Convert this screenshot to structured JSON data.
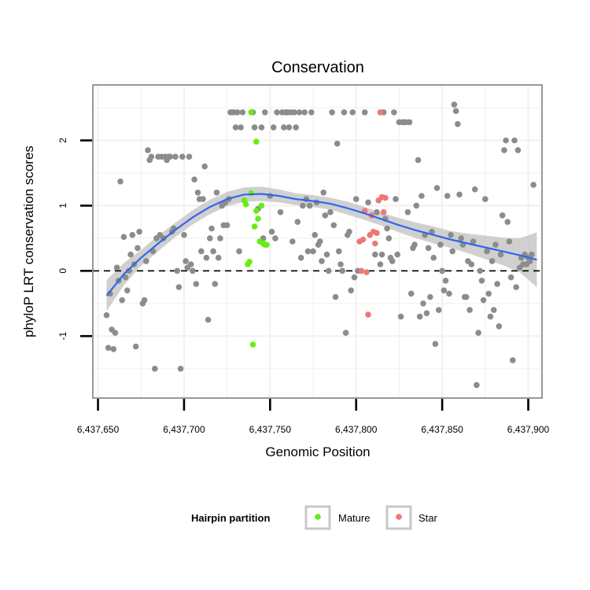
{
  "chart_data": {
    "type": "scatter",
    "title": "Conservation",
    "xlabel": "Genomic Position",
    "ylabel": "phyloP LRT conservation scores",
    "xlim": [
      6437647,
      6437908
    ],
    "ylim": [
      -1.95,
      2.85
    ],
    "x_ticks": [
      6437650,
      6437700,
      6437750,
      6437800,
      6437850,
      6437900
    ],
    "x_tick_labels": [
      "6,437,650",
      "6,437,700",
      "6,437,750",
      "6,437,800",
      "6,437,850",
      "6,437,900"
    ],
    "y_ticks": [
      -1,
      0,
      1,
      2
    ],
    "y_tick_labels": [
      "-1",
      "0",
      "1",
      "2"
    ],
    "reference_line": {
      "y": 0,
      "style": "dashed"
    },
    "grid": true,
    "legend": {
      "title": "Hairpin partition",
      "placement": "bottom",
      "entries": [
        {
          "label": "Mature",
          "color": "#66ee11"
        },
        {
          "label": "Star",
          "color": "#ee7777"
        }
      ]
    },
    "colors": {
      "other": "#8c8c8c",
      "Mature": "#66ee11",
      "Star": "#ee7777",
      "smooth": "#3366ee",
      "ribbon": "#c8c8c8"
    },
    "series": [
      {
        "group": "other",
        "points": [
          [
            6437655,
            -0.68
          ],
          [
            6437656,
            -1.18
          ],
          [
            6437657,
            -0.35
          ],
          [
            6437658,
            -0.9
          ],
          [
            6437659,
            -1.2
          ],
          [
            6437660,
            -0.95
          ],
          [
            6437661,
            0.05
          ],
          [
            6437662,
            -0.15
          ],
          [
            6437663,
            1.37
          ],
          [
            6437664,
            -0.45
          ],
          [
            6437665,
            0.52
          ],
          [
            6437666,
            -0.1
          ],
          [
            6437667,
            -0.3
          ],
          [
            6437668,
            0.0
          ],
          [
            6437669,
            0.25
          ],
          [
            6437670,
            0.55
          ],
          [
            6437671,
            0.1
          ],
          [
            6437672,
            -1.16
          ],
          [
            6437673,
            0.35
          ],
          [
            6437674,
            0.6
          ],
          [
            6437676,
            -0.5
          ],
          [
            6437677,
            -0.45
          ],
          [
            6437678,
            0.15
          ],
          [
            6437679,
            1.85
          ],
          [
            6437680,
            1.7
          ],
          [
            6437681,
            1.75
          ],
          [
            6437682,
            0.3
          ],
          [
            6437683,
            -1.5
          ],
          [
            6437684,
            0.5
          ],
          [
            6437685,
            1.75
          ],
          [
            6437686,
            0.55
          ],
          [
            6437687,
            1.75
          ],
          [
            6437688,
            0.5
          ],
          [
            6437689,
            1.75
          ],
          [
            6437690,
            1.7
          ],
          [
            6437691,
            1.75
          ],
          [
            6437692,
            1.75
          ],
          [
            6437693,
            0.6
          ],
          [
            6437694,
            0.65
          ],
          [
            6437695,
            1.75
          ],
          [
            6437696,
            0.0
          ],
          [
            6437697,
            -0.25
          ],
          [
            6437698,
            -1.5
          ],
          [
            6437699,
            1.75
          ],
          [
            6437700,
            0.55
          ],
          [
            6437701,
            0.15
          ],
          [
            6437702,
            0.05
          ],
          [
            6437703,
            1.75
          ],
          [
            6437704,
            0.1
          ],
          [
            6437705,
            0.0
          ],
          [
            6437706,
            1.4
          ],
          [
            6437707,
            -0.2
          ],
          [
            6437708,
            1.2
          ],
          [
            6437709,
            1.1
          ],
          [
            6437710,
            0.3
          ],
          [
            6437711,
            1.1
          ],
          [
            6437712,
            1.6
          ],
          [
            6437713,
            0.2
          ],
          [
            6437714,
            -0.75
          ],
          [
            6437715,
            0.5
          ],
          [
            6437716,
            0.65
          ],
          [
            6437717,
            0.3
          ],
          [
            6437718,
            -0.2
          ],
          [
            6437719,
            1.2
          ],
          [
            6437720,
            0.2
          ],
          [
            6437721,
            0.5
          ],
          [
            6437722,
            1.0
          ],
          [
            6437723,
            0.7
          ],
          [
            6437724,
            1.05
          ],
          [
            6437725,
            0.7
          ],
          [
            6437726,
            1.1
          ],
          [
            6437727,
            2.43
          ],
          [
            6437728,
            2.43
          ],
          [
            6437729,
            2.43
          ],
          [
            6437730,
            2.2
          ],
          [
            6437731,
            2.43
          ],
          [
            6437732,
            0.3
          ],
          [
            6437733,
            2.2
          ],
          [
            6437734,
            2.43
          ],
          [
            6437740,
            2.43
          ],
          [
            6437741,
            2.2
          ],
          [
            6437743,
            0.95
          ],
          [
            6437745,
            2.2
          ],
          [
            6437746,
            0.5
          ],
          [
            6437747,
            2.43
          ],
          [
            6437750,
            1.15
          ],
          [
            6437751,
            0.6
          ],
          [
            6437752,
            2.2
          ],
          [
            6437753,
            0.5
          ],
          [
            6437754,
            2.43
          ],
          [
            6437756,
            0.9
          ],
          [
            6437757,
            2.43
          ],
          [
            6437758,
            2.2
          ],
          [
            6437759,
            2.43
          ],
          [
            6437760,
            2.43
          ],
          [
            6437761,
            2.2
          ],
          [
            6437762,
            2.43
          ],
          [
            6437763,
            0.45
          ],
          [
            6437764,
            2.43
          ],
          [
            6437765,
            2.2
          ],
          [
            6437766,
            0.75
          ],
          [
            6437767,
            2.43
          ],
          [
            6437768,
            0.2
          ],
          [
            6437769,
            1.0
          ],
          [
            6437770,
            2.43
          ],
          [
            6437771,
            1.1
          ],
          [
            6437772,
            0.3
          ],
          [
            6437773,
            1.0
          ],
          [
            6437774,
            2.43
          ],
          [
            6437775,
            0.3
          ],
          [
            6437776,
            0.55
          ],
          [
            6437777,
            1.05
          ],
          [
            6437778,
            0.4
          ],
          [
            6437779,
            0.45
          ],
          [
            6437780,
            0.15
          ],
          [
            6437781,
            1.2
          ],
          [
            6437782,
            0.85
          ],
          [
            6437783,
            0.25
          ],
          [
            6437784,
            0.0
          ],
          [
            6437785,
            0.9
          ],
          [
            6437786,
            2.43
          ],
          [
            6437787,
            0.7
          ],
          [
            6437788,
            -0.4
          ],
          [
            6437789,
            1.95
          ],
          [
            6437790,
            0.3
          ],
          [
            6437791,
            0.1
          ],
          [
            6437792,
            0.0
          ],
          [
            6437793,
            2.43
          ],
          [
            6437794,
            -0.95
          ],
          [
            6437795,
            0.55
          ],
          [
            6437796,
            0.6
          ],
          [
            6437797,
            -0.3
          ],
          [
            6437798,
            2.43
          ],
          [
            6437799,
            -0.1
          ],
          [
            6437800,
            1.1
          ],
          [
            6437801,
            0.0
          ],
          [
            6437805,
            2.43
          ],
          [
            6437807,
            1.05
          ],
          [
            6437811,
            0.25
          ],
          [
            6437812,
            0.9
          ],
          [
            6437814,
            0.1
          ],
          [
            6437815,
            0.25
          ],
          [
            6437816,
            2.43
          ],
          [
            6437817,
            0.8
          ],
          [
            6437818,
            0.65
          ],
          [
            6437819,
            0.5
          ],
          [
            6437820,
            0.2
          ],
          [
            6437821,
            0.15
          ],
          [
            6437822,
            2.43
          ],
          [
            6437823,
            1.1
          ],
          [
            6437824,
            0.25
          ],
          [
            6437825,
            2.28
          ],
          [
            6437826,
            -0.7
          ],
          [
            6437827,
            2.28
          ],
          [
            6437828,
            2.28
          ],
          [
            6437829,
            2.28
          ],
          [
            6437830,
            0.9
          ],
          [
            6437831,
            2.28
          ],
          [
            6437832,
            -0.35
          ],
          [
            6437833,
            0.35
          ],
          [
            6437834,
            0.4
          ],
          [
            6437835,
            1.0
          ],
          [
            6437836,
            1.7
          ],
          [
            6437837,
            -0.7
          ],
          [
            6437838,
            1.15
          ],
          [
            6437839,
            -0.5
          ],
          [
            6437840,
            0.55
          ],
          [
            6437841,
            -0.65
          ],
          [
            6437842,
            0.35
          ],
          [
            6437843,
            -0.4
          ],
          [
            6437844,
            0.6
          ],
          [
            6437845,
            0.2
          ],
          [
            6437846,
            -1.12
          ],
          [
            6437847,
            1.27
          ],
          [
            6437848,
            -0.6
          ],
          [
            6437849,
            0.4
          ],
          [
            6437850,
            0.0
          ],
          [
            6437851,
            -0.3
          ],
          [
            6437852,
            -0.15
          ],
          [
            6437853,
            1.15
          ],
          [
            6437854,
            -0.35
          ],
          [
            6437855,
            0.55
          ],
          [
            6437856,
            0.3
          ],
          [
            6437857,
            2.55
          ],
          [
            6437858,
            2.45
          ],
          [
            6437859,
            2.25
          ],
          [
            6437860,
            1.17
          ],
          [
            6437861,
            0.5
          ],
          [
            6437862,
            0.4
          ],
          [
            6437863,
            -0.4
          ],
          [
            6437864,
            -0.4
          ],
          [
            6437865,
            0.15
          ],
          [
            6437866,
            -0.6
          ],
          [
            6437867,
            0.1
          ],
          [
            6437868,
            0.45
          ],
          [
            6437869,
            1.25
          ],
          [
            6437870,
            -1.75
          ],
          [
            6437871,
            -0.95
          ],
          [
            6437872,
            0.0
          ],
          [
            6437873,
            -0.15
          ],
          [
            6437874,
            -0.45
          ],
          [
            6437875,
            1.1
          ],
          [
            6437876,
            0.3
          ],
          [
            6437877,
            -0.35
          ],
          [
            6437878,
            -0.7
          ],
          [
            6437879,
            0.15
          ],
          [
            6437880,
            -0.6
          ],
          [
            6437881,
            0.4
          ],
          [
            6437882,
            -0.2
          ],
          [
            6437883,
            -0.85
          ],
          [
            6437884,
            0.25
          ],
          [
            6437885,
            0.85
          ],
          [
            6437886,
            1.85
          ],
          [
            6437887,
            2.0
          ],
          [
            6437888,
            0.75
          ],
          [
            6437889,
            0.45
          ],
          [
            6437890,
            -0.1
          ],
          [
            6437891,
            -1.37
          ],
          [
            6437892,
            2.0
          ],
          [
            6437893,
            -0.25
          ],
          [
            6437894,
            1.85
          ],
          [
            6437895,
            0.05
          ],
          [
            6437896,
            0.2
          ],
          [
            6437897,
            0.1
          ],
          [
            6437898,
            0.25
          ],
          [
            6437899,
            0.1
          ],
          [
            6437900,
            0.2
          ],
          [
            6437901,
            0.15
          ],
          [
            6437902,
            0.25
          ],
          [
            6437903,
            1.32
          ]
        ]
      },
      {
        "name": "Mature",
        "group": "Mature",
        "points": [
          [
            6437735,
            1.08
          ],
          [
            6437736,
            1.02
          ],
          [
            6437737,
            0.1
          ],
          [
            6437738,
            0.14
          ],
          [
            6437739,
            2.43
          ],
          [
            6437740,
            -1.13
          ],
          [
            6437741,
            0.68
          ],
          [
            6437742,
            1.98
          ],
          [
            6437743,
            0.8
          ],
          [
            6437744,
            0.45
          ],
          [
            6437745,
            1.0
          ],
          [
            6437746,
            0.42
          ],
          [
            6437747,
            0.4
          ],
          [
            6437748,
            0.4
          ],
          [
            6437739,
            1.19
          ],
          [
            6437742,
            0.92
          ]
        ]
      },
      {
        "name": "Star",
        "group": "Star",
        "points": [
          [
            6437802,
            0.45
          ],
          [
            6437803,
            0.0
          ],
          [
            6437804,
            0.48
          ],
          [
            6437805,
            0.92
          ],
          [
            6437806,
            -0.02
          ],
          [
            6437807,
            -0.67
          ],
          [
            6437808,
            0.55
          ],
          [
            6437809,
            0.85
          ],
          [
            6437810,
            0.6
          ],
          [
            6437811,
            0.42
          ],
          [
            6437812,
            0.58
          ],
          [
            6437813,
            1.08
          ],
          [
            6437814,
            2.43
          ],
          [
            6437815,
            1.13
          ],
          [
            6437816,
            0.9
          ],
          [
            6437817,
            1.12
          ]
        ]
      },
      {
        "name": "loess smooth",
        "group": "smooth",
        "x": [
          6437655,
          6437665,
          6437675,
          6437685,
          6437695,
          6437705,
          6437715,
          6437725,
          6437735,
          6437745,
          6437755,
          6437765,
          6437775,
          6437785,
          6437795,
          6437805,
          6437815,
          6437825,
          6437835,
          6437845,
          6437855,
          6437865,
          6437875,
          6437885,
          6437895,
          6437905
        ],
        "y": [
          -0.38,
          -0.05,
          0.2,
          0.42,
          0.63,
          0.82,
          0.98,
          1.1,
          1.17,
          1.18,
          1.15,
          1.1,
          1.07,
          1.03,
          0.96,
          0.88,
          0.79,
          0.7,
          0.62,
          0.55,
          0.48,
          0.42,
          0.36,
          0.3,
          0.24,
          0.17
        ],
        "ribbon_low": [
          -0.62,
          -0.22,
          0.08,
          0.3,
          0.52,
          0.71,
          0.87,
          0.99,
          1.06,
          1.07,
          1.05,
          1.01,
          0.98,
          0.94,
          0.86,
          0.78,
          0.69,
          0.59,
          0.5,
          0.42,
          0.35,
          0.27,
          0.18,
          0.09,
          -0.02,
          -0.25
        ],
        "ribbon_high": [
          -0.14,
          0.12,
          0.32,
          0.54,
          0.74,
          0.93,
          1.09,
          1.21,
          1.28,
          1.29,
          1.25,
          1.19,
          1.16,
          1.12,
          1.06,
          0.98,
          0.89,
          0.81,
          0.74,
          0.68,
          0.61,
          0.57,
          0.54,
          0.51,
          0.5,
          0.59
        ]
      }
    ]
  }
}
